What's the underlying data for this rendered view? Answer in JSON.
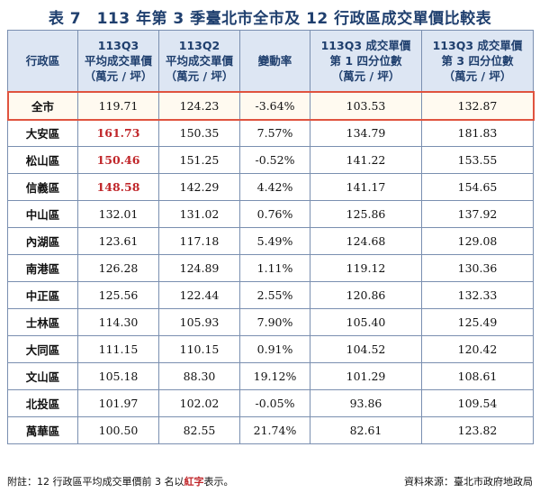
{
  "title": "表 7　113 年第 3 季臺北市全市及 12 行政區成交單價比較表",
  "headers": [
    "行政區",
    "113Q3\n平均成交單價\n（萬元 / 坪）",
    "113Q2\n平均成交單價\n（萬元 / 坪）",
    "變動率",
    "113Q3 成交單價\n第 1 四分位數\n（萬元 / 坪）",
    "113Q3 成交單價\n第 3 四分位數\n（萬元 / 坪）"
  ],
  "total": {
    "district": "全市",
    "q3": "119.71",
    "q2": "124.23",
    "change": "-3.64%",
    "p25": "103.53",
    "p75": "132.87"
  },
  "rows": [
    {
      "district": "大安區",
      "q3": "161.73",
      "q2": "150.35",
      "change": "7.57%",
      "p25": "134.79",
      "p75": "181.83",
      "highlight": true
    },
    {
      "district": "松山區",
      "q3": "150.46",
      "q2": "151.25",
      "change": "-0.52%",
      "p25": "141.22",
      "p75": "153.55",
      "highlight": true
    },
    {
      "district": "信義區",
      "q3": "148.58",
      "q2": "142.29",
      "change": "4.42%",
      "p25": "141.17",
      "p75": "154.65",
      "highlight": true
    },
    {
      "district": "中山區",
      "q3": "132.01",
      "q2": "131.02",
      "change": "0.76%",
      "p25": "125.86",
      "p75": "137.92",
      "highlight": false
    },
    {
      "district": "內湖區",
      "q3": "123.61",
      "q2": "117.18",
      "change": "5.49%",
      "p25": "124.68",
      "p75": "129.08",
      "highlight": false
    },
    {
      "district": "南港區",
      "q3": "126.28",
      "q2": "124.89",
      "change": "1.11%",
      "p25": "119.12",
      "p75": "130.36",
      "highlight": false
    },
    {
      "district": "中正區",
      "q3": "125.56",
      "q2": "122.44",
      "change": "2.55%",
      "p25": "120.86",
      "p75": "132.33",
      "highlight": false
    },
    {
      "district": "士林區",
      "q3": "114.30",
      "q2": "105.93",
      "change": "7.90%",
      "p25": "105.40",
      "p75": "125.49",
      "highlight": false
    },
    {
      "district": "大同區",
      "q3": "111.15",
      "q2": "110.15",
      "change": "0.91%",
      "p25": "104.52",
      "p75": "120.42",
      "highlight": false
    },
    {
      "district": "文山區",
      "q3": "105.18",
      "q2": "88.30",
      "change": "19.12%",
      "p25": "101.29",
      "p75": "108.61",
      "highlight": false
    },
    {
      "district": "北投區",
      "q3": "101.97",
      "q2": "102.02",
      "change": "-0.05%",
      "p25": "93.86",
      "p75": "109.54",
      "highlight": false
    },
    {
      "district": "萬華區",
      "q3": "100.50",
      "q2": "82.55",
      "change": "21.74%",
      "p25": "82.61",
      "p75": "123.82",
      "highlight": false
    }
  ],
  "footer": {
    "note_prefix": "附註：12 行政區平均成交單價前 3 名以",
    "note_red": "紅字",
    "note_suffix": "表示。",
    "source": "資料來源：臺北市政府地政局"
  },
  "colors": {
    "header_bg": "#dde6f3",
    "title": "#1f3f6e",
    "highlight": "#c0262a",
    "total_border": "#e0533f"
  }
}
